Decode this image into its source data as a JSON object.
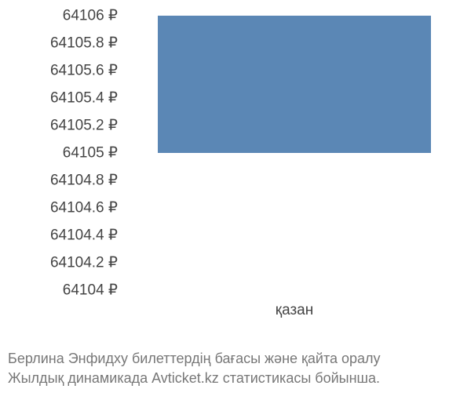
{
  "chart": {
    "type": "bar",
    "ylim": [
      64104,
      64106
    ],
    "yticks": [
      {
        "value": 64106,
        "label": "64106 ₽"
      },
      {
        "value": 64105.8,
        "label": "64105.8 ₽"
      },
      {
        "value": 64105.6,
        "label": "64105.6 ₽"
      },
      {
        "value": 64105.4,
        "label": "64105.4 ₽"
      },
      {
        "value": 64105.2,
        "label": "64105.2 ₽"
      },
      {
        "value": 64105,
        "label": "64105 ₽"
      },
      {
        "value": 64104.8,
        "label": "64104.8 ₽"
      },
      {
        "value": 64104.6,
        "label": "64104.6 ₽"
      },
      {
        "value": 64104.4,
        "label": "64104.4 ₽"
      },
      {
        "value": 64104.2,
        "label": "64104.2 ₽"
      },
      {
        "value": 64104,
        "label": "64104 ₽"
      }
    ],
    "bars": [
      {
        "category": "қазан",
        "value_low": 64105,
        "value_high": 64106
      }
    ],
    "bar_color": "#5b87b5",
    "background_color": "#ffffff",
    "tick_color": "#444444",
    "tick_fontsize": 19,
    "bar_width_ratio": 0.85
  },
  "caption": {
    "line1": "Берлина Энфидху билеттердің бағасы және қайта оралу",
    "line2": "Жылдық динамикада Avticket.kz статистикасы бойынша.",
    "color": "#777777",
    "fontsize": 18
  }
}
